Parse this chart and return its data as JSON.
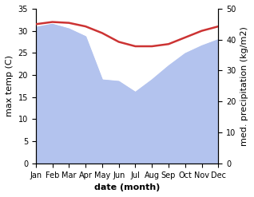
{
  "months": [
    "Jan",
    "Feb",
    "Mar",
    "Apr",
    "May",
    "Jun",
    "Jul",
    "Aug",
    "Sep",
    "Oct",
    "Nov",
    "Dec"
  ],
  "month_x": [
    0,
    1,
    2,
    3,
    4,
    5,
    6,
    7,
    8,
    9,
    10,
    11
  ],
  "temperature": [
    31.5,
    32.0,
    31.8,
    31.0,
    29.5,
    27.5,
    26.5,
    26.5,
    27.0,
    28.5,
    30.0,
    31.0
  ],
  "precipitation": [
    44.0,
    45.0,
    43.5,
    41.0,
    27.0,
    26.5,
    23.0,
    27.0,
    31.5,
    35.5,
    38.0,
    40.0
  ],
  "temp_color": "#cc3333",
  "precip_color": "#b3c3ee",
  "background_color": "#ffffff",
  "left_ylabel": "max temp (C)",
  "right_ylabel": "med. precipitation (kg/m2)",
  "xlabel": "date (month)",
  "left_ylim": [
    0,
    35
  ],
  "right_ylim": [
    0,
    50
  ],
  "left_yticks": [
    0,
    5,
    10,
    15,
    20,
    25,
    30,
    35
  ],
  "right_yticks": [
    0,
    10,
    20,
    30,
    40,
    50
  ],
  "temp_linewidth": 1.8,
  "label_fontsize": 8,
  "tick_fontsize": 7
}
